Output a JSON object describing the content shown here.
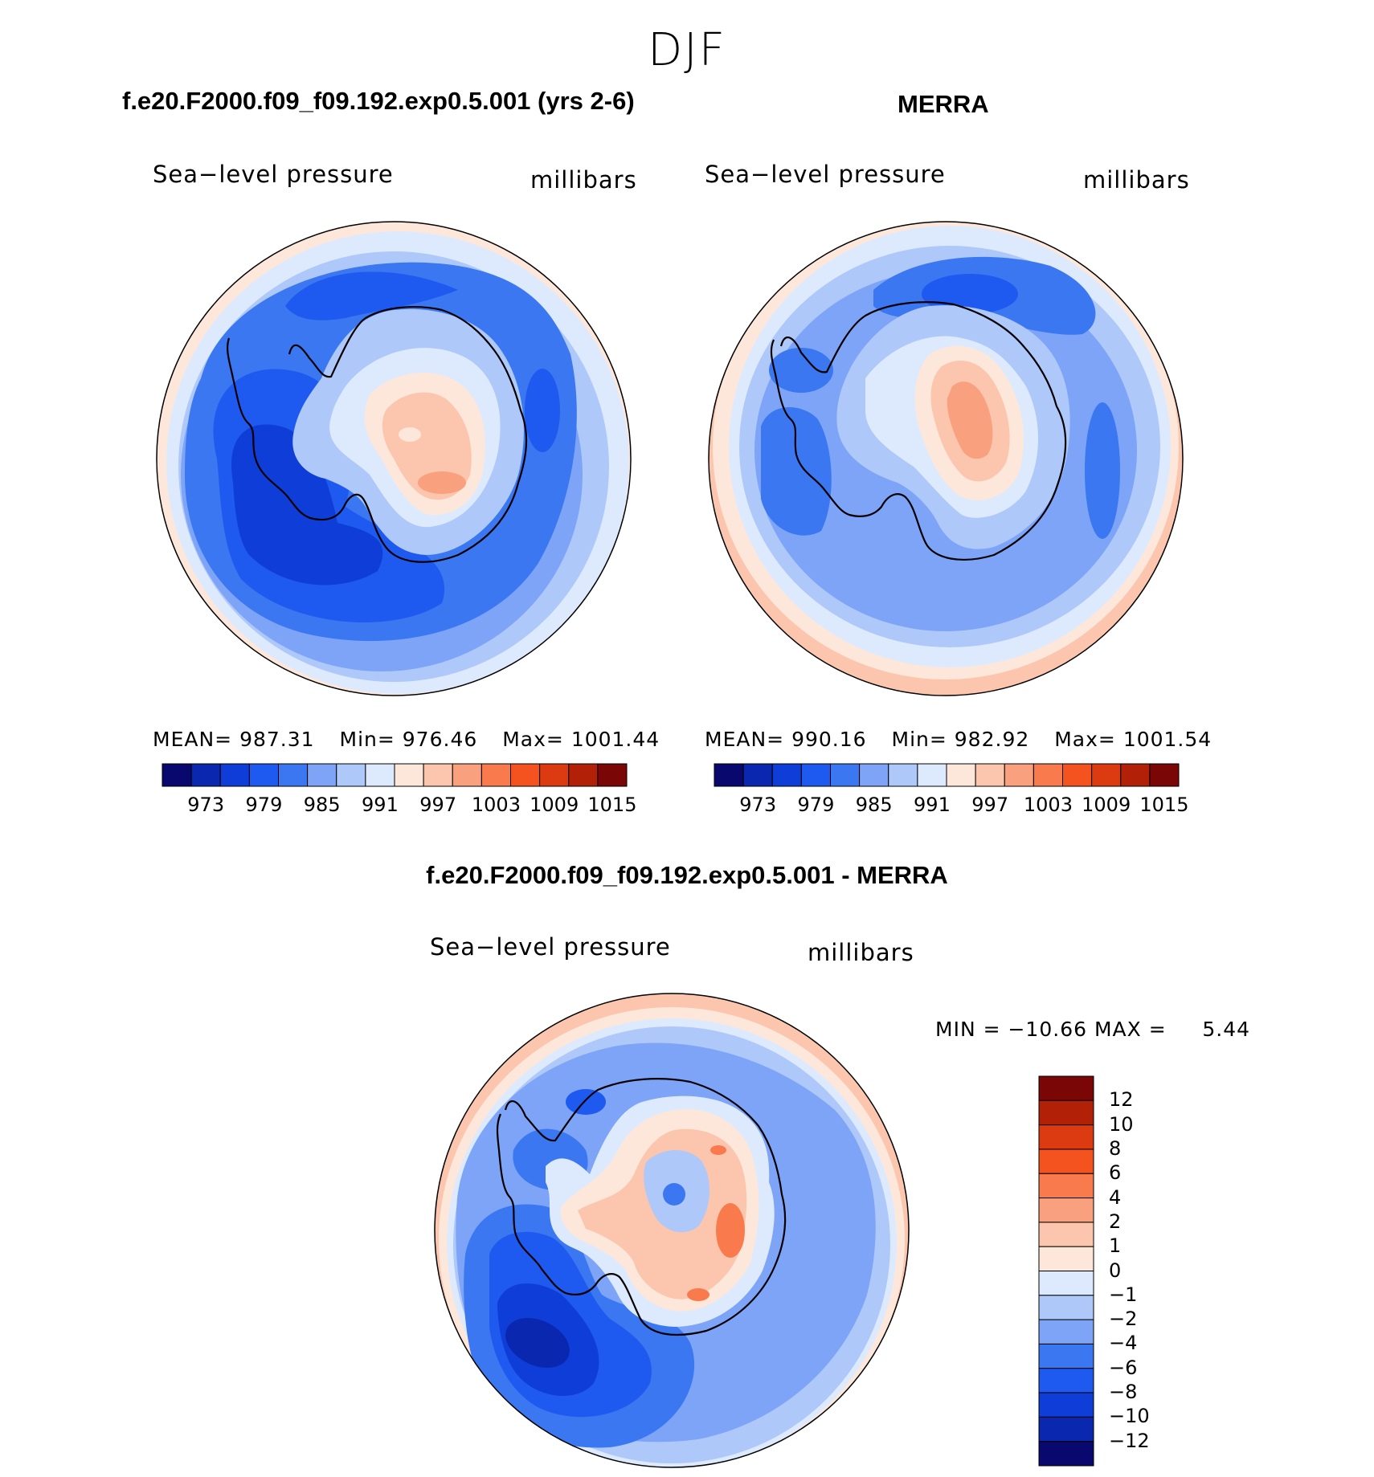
{
  "season": "DJF",
  "colors": {
    "abs": [
      "#08086e",
      "#0a27b0",
      "#0f3dd8",
      "#1f5af0",
      "#3a77f0",
      "#7da4f7",
      "#aec8fa",
      "#ddeafd",
      "#fde7da",
      "#fbc6ad",
      "#f9a07e",
      "#f97a4d",
      "#f45320",
      "#dc3a10",
      "#b32008",
      "#7a0606"
    ],
    "diff": [
      "#08086e",
      "#0a27b0",
      "#0f3dd8",
      "#1f5af0",
      "#3a77f0",
      "#7da4f7",
      "#aec8fa",
      "#ddeafd",
      "#fde7da",
      "#fbc6ad",
      "#f9a07e",
      "#f97a4d",
      "#f45320",
      "#dc3a10",
      "#b32008",
      "#7a0606"
    ]
  },
  "panels": {
    "left": {
      "case_title": "f.e20.F2000.f09_f09.192.exp0.5.001 (yrs 2-6)",
      "variable": "Sea−level pressure",
      "units": "millibars",
      "mean_label": "MEAN=",
      "mean": "987.31",
      "min_label": "Min=",
      "min": "976.46",
      "max_label": "Max=",
      "max": "1001.44",
      "colorbar_labels": [
        "973",
        "979",
        "985",
        "991",
        "997",
        "1003",
        "1009",
        "1015"
      ]
    },
    "right": {
      "case_title": "MERRA",
      "variable": "Sea−level pressure",
      "units": "millibars",
      "mean_label": "MEAN=",
      "mean": "990.16",
      "min_label": "Min=",
      "min": "982.92",
      "max_label": "Max=",
      "max": "1001.54",
      "colorbar_labels": [
        "973",
        "979",
        "985",
        "991",
        "997",
        "1003",
        "1009",
        "1015"
      ]
    },
    "diff": {
      "case_title": "f.e20.F2000.f09_f09.192.exp0.5.001 - MERRA",
      "variable": "Sea−level pressure",
      "units": "millibars",
      "minmax": "MIN = −10.66 MAX =     5.44",
      "colorbar_labels": [
        "12",
        "10",
        "8",
        "6",
        "4",
        "2",
        "1",
        "0",
        "−1",
        "−2",
        "−4",
        "−6",
        "−8",
        "−10",
        "−12"
      ]
    }
  }
}
